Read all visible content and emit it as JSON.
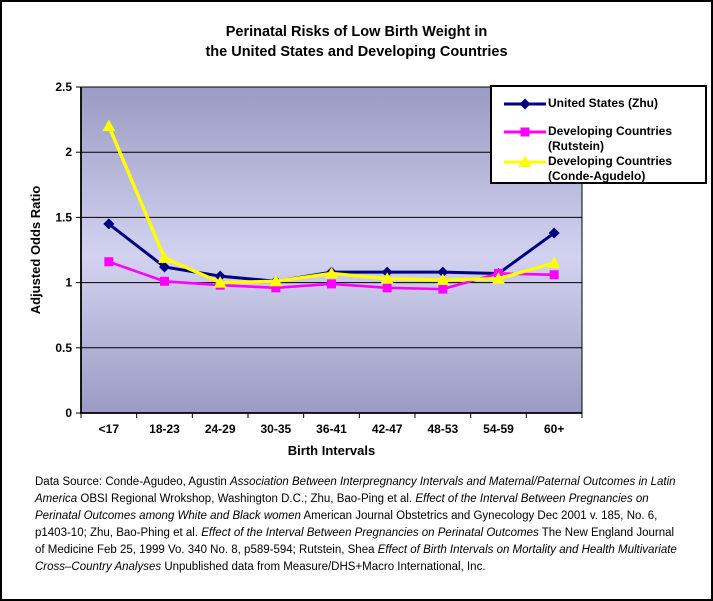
{
  "title": {
    "line1": "Perinatal Risks of Low Birth Weight in",
    "line2": "the United States and Developing Countries"
  },
  "chart_data": {
    "type": "line",
    "title": "Perinatal Risks of Low Birth Weight in the United States and Developing Countries",
    "xlabel": "Birth Intervals",
    "ylabel": "Adjusted Odds Ratio",
    "categories": [
      "<17",
      "18-23",
      "24-29",
      "30-35",
      "36-41",
      "42-47",
      "48-53",
      "54-59",
      "60+"
    ],
    "series": [
      {
        "name": "United States (Zhu)",
        "color": "#000080",
        "marker": "diamond",
        "values": [
          1.45,
          1.12,
          1.05,
          1.01,
          1.08,
          1.08,
          1.08,
          1.07,
          1.38
        ]
      },
      {
        "name": "Developing Countries (Rutstein)",
        "color": "#FF00FF",
        "marker": "square",
        "values": [
          1.16,
          1.01,
          0.98,
          0.96,
          0.99,
          0.96,
          0.95,
          1.07,
          1.06
        ]
      },
      {
        "name": "Developing Countries (Conde-Agudelo)",
        "color": "#FFFF00",
        "marker": "triangle",
        "values": [
          2.2,
          1.19,
          1.0,
          1.01,
          1.07,
          1.03,
          1.02,
          1.03,
          1.15
        ]
      }
    ],
    "ylim": [
      0,
      2.5
    ],
    "yticks": [
      0,
      0.5,
      1,
      1.5,
      2,
      2.5
    ],
    "ytick_labels": [
      "0",
      "0.5",
      "1",
      "1.5",
      "2",
      "2.5"
    ],
    "grid": true,
    "legend_position": "top-right",
    "plot_bg_gradient": [
      "#9B9BC3",
      "#D2D2F0",
      "#9B9BC3"
    ],
    "gridline_color": "#000000"
  },
  "legend": {
    "entries": [
      {
        "label_lines": [
          "United States (Zhu)"
        ],
        "marker": "diamond",
        "color": "#000080"
      },
      {
        "label_lines": [
          "Developing Countries",
          "(Rutstein)"
        ],
        "marker": "square",
        "color": "#FF00FF"
      },
      {
        "label_lines": [
          "Developing Countries",
          "(Conde-Agudelo)"
        ],
        "marker": "triangle",
        "color": "#FFFF00"
      }
    ]
  },
  "footer": {
    "lines": [
      [
        {
          "t": "Data Source: Conde-Agudeo, Agustin ",
          "i": false
        },
        {
          "t": "Association Between Interpregnancy Intervals and Maternal/Paternal Outcomes in Latin",
          "i": true
        }
      ],
      [
        {
          "t": "America",
          "i": true
        },
        {
          "t": " OBSI Regional Wrokshop, Washington D.C.; Zhu, Bao-Ping et al. ",
          "i": false
        },
        {
          "t": "Effect of the Interval Between Pregnancies on",
          "i": true
        }
      ],
      [
        {
          "t": " Perinatal Outcomes among White and Black women",
          "i": true
        },
        {
          "t": " American Journal Obstetrics and Gynecology Dec 2001 v. 185, No. 6,",
          "i": false
        }
      ],
      [
        {
          "t": "p1403-10; Zhu, Bao-Phing et al. ",
          "i": false
        },
        {
          "t": "Effect of the Interval Between Pregnancies on Perinatal Outcomes",
          "i": true
        },
        {
          "t": " The New England Journal",
          "i": false
        }
      ],
      [
        {
          "t": "of Medicine Feb 25, 1999 Vo. 340 No. 8, p589-594; Rutstein, Shea ",
          "i": false
        },
        {
          "t": "Effect of Birth Intervals on Mortality and Health Multivariate",
          "i": true
        }
      ],
      [
        {
          "t": " Cross–Country Analyses",
          "i": true
        },
        {
          "t": " Unpublished data from Measure/DHS+Macro International, Inc.",
          "i": false
        }
      ]
    ]
  }
}
